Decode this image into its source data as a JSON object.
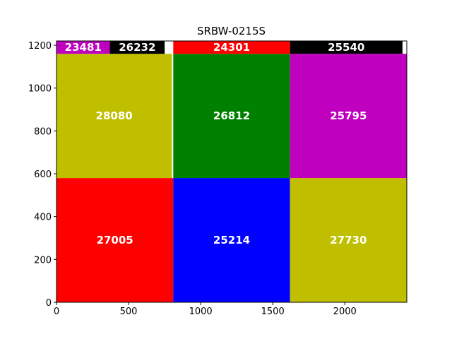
{
  "chart_data": {
    "type": "heatmap",
    "title": "SRBW-0215S",
    "xlabel": "",
    "ylabel": "",
    "xlim": [
      0,
      2430
    ],
    "ylim": [
      0,
      1220
    ],
    "xticks": [
      0,
      500,
      1000,
      1500,
      2000
    ],
    "yticks": [
      0,
      200,
      400,
      600,
      800,
      1000,
      1200
    ],
    "grid": false,
    "cells": [
      {
        "label": "27005",
        "x0": 0,
        "x1": 810,
        "y0": 0,
        "y1": 580,
        "color": "#ff0000"
      },
      {
        "label": "25214",
        "x0": 810,
        "x1": 1620,
        "y0": 0,
        "y1": 580,
        "color": "#0000ff"
      },
      {
        "label": "27730",
        "x0": 1620,
        "x1": 2430,
        "y0": 0,
        "y1": 580,
        "color": "#bfbf00"
      },
      {
        "label": "28080",
        "x0": 0,
        "x1": 800,
        "y0": 580,
        "y1": 1160,
        "color": "#bfbf00"
      },
      {
        "label": "26812",
        "x0": 810,
        "x1": 1620,
        "y0": 580,
        "y1": 1160,
        "color": "#008000"
      },
      {
        "label": "25795",
        "x0": 1620,
        "x1": 2430,
        "y0": 580,
        "y1": 1160,
        "color": "#bf00bf"
      },
      {
        "label": "23481",
        "x0": 0,
        "x1": 370,
        "y0": 1160,
        "y1": 1220,
        "color": "#bf00bf"
      },
      {
        "label": "26232",
        "x0": 370,
        "x1": 750,
        "y0": 1160,
        "y1": 1220,
        "color": "#000000"
      },
      {
        "label": "24301",
        "x0": 810,
        "x1": 1620,
        "y0": 1160,
        "y1": 1220,
        "color": "#ff0000"
      },
      {
        "label": "25540",
        "x0": 1620,
        "x1": 2400,
        "y0": 1160,
        "y1": 1220,
        "color": "#000000"
      }
    ]
  }
}
